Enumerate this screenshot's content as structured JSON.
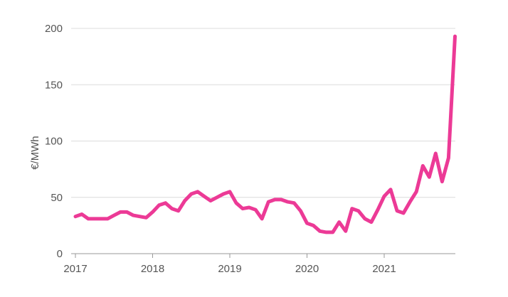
{
  "chart_data": {
    "type": "line",
    "title": "",
    "xlabel": "",
    "ylabel": "€/MWh",
    "ylim": [
      0,
      200
    ],
    "yticks": [
      0,
      50,
      100,
      150,
      200
    ],
    "xticks": [
      "2017",
      "2018",
      "2019",
      "2020",
      "2021"
    ],
    "x_start": "2017-01",
    "grid": true,
    "legend": "none",
    "line_color": "#ec3a96",
    "series": [
      {
        "values": [
          33,
          35,
          31,
          31,
          31,
          31,
          34,
          37,
          37,
          34,
          33,
          32,
          37,
          43,
          45,
          40,
          38,
          47,
          53,
          55,
          51,
          47,
          50,
          53,
          55,
          45,
          40,
          41,
          39,
          31,
          46,
          48,
          48,
          46,
          45,
          38,
          27,
          25,
          20,
          19,
          19,
          28,
          20,
          40,
          38,
          31,
          28,
          39,
          51,
          57,
          38,
          36,
          46,
          55,
          78,
          68,
          89,
          64,
          85,
          193
        ]
      }
    ]
  }
}
